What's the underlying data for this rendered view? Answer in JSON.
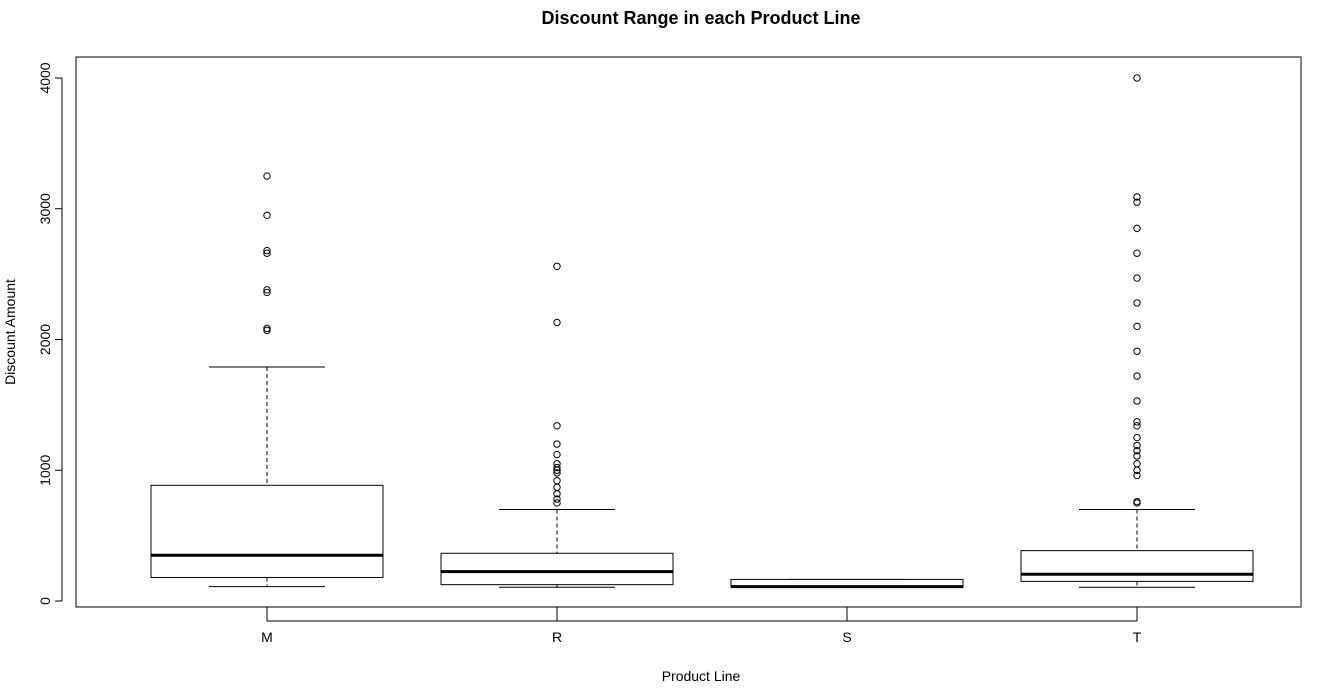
{
  "chart_data": {
    "type": "boxplot",
    "title": "Discount Range in each Product Line",
    "xlabel": "Product Line",
    "ylabel": "Discount Amount",
    "ylim": [
      -50,
      4150
    ],
    "yticks": [
      0,
      1000,
      2000,
      3000,
      4000
    ],
    "grid": false,
    "categories": [
      "M",
      "R",
      "S",
      "T"
    ],
    "boxes": [
      {
        "category": "M",
        "whisker_low": 110,
        "q1": 180,
        "median": 350,
        "q3": 885,
        "whisker_high": 1790,
        "outliers": [
          2070,
          2085,
          2360,
          2380,
          2660,
          2680,
          2950,
          3250
        ]
      },
      {
        "category": "R",
        "whisker_low": 105,
        "q1": 125,
        "median": 225,
        "q3": 365,
        "whisker_high": 700,
        "outliers": [
          750,
          780,
          820,
          870,
          920,
          980,
          1000,
          1020,
          1050,
          1120,
          1200,
          1340,
          2130,
          2560
        ]
      },
      {
        "category": "S",
        "whisker_low": 105,
        "q1": 105,
        "median": 110,
        "q3": 165,
        "whisker_high": 165,
        "outliers": []
      },
      {
        "category": "T",
        "whisker_low": 105,
        "q1": 150,
        "median": 205,
        "q3": 385,
        "whisker_high": 700,
        "outliers": [
          750,
          760,
          960,
          1000,
          1050,
          1110,
          1150,
          1190,
          1250,
          1340,
          1370,
          1530,
          1720,
          1910,
          2100,
          2280,
          2470,
          2660,
          2850,
          3050,
          3090,
          4000
        ]
      }
    ]
  }
}
